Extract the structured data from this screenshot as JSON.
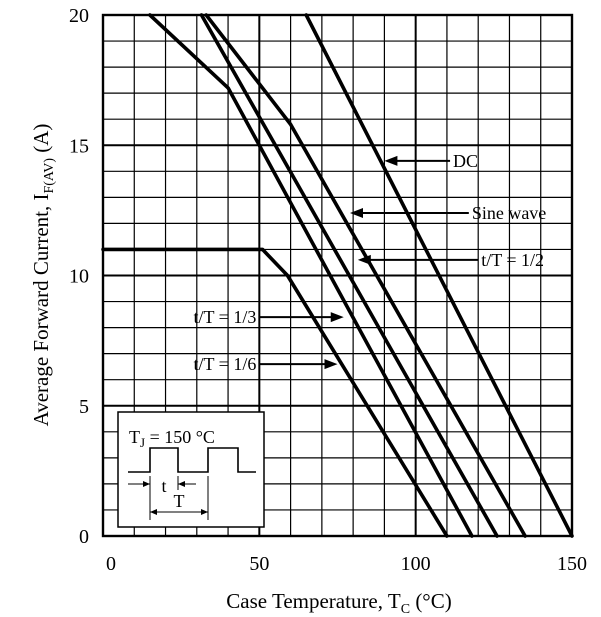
{
  "chart_data": {
    "type": "line",
    "xlabel": {
      "main": "Case Temperature, T",
      "sub": "C",
      "unit": " (°C)"
    },
    "ylabel": {
      "main": "Average Forward Current, I",
      "sub": "F(AV)",
      "unit": " (A)"
    },
    "xlim": [
      0,
      150
    ],
    "ylim": [
      0,
      20
    ],
    "x_ticks": [
      0,
      50,
      100,
      150
    ],
    "y_ticks": [
      0,
      5,
      10,
      15,
      20
    ],
    "grid": true,
    "minor_x_step": 10,
    "minor_y_step": 1,
    "series": [
      {
        "name": "DC",
        "x": [
          65,
          150
        ],
        "y": [
          20,
          0
        ]
      },
      {
        "name": "Sine wave",
        "x": [
          33,
          60,
          135
        ],
        "y": [
          20,
          15.8,
          0
        ]
      },
      {
        "name": "t/T = 1/2",
        "x": [
          31.5,
          126
        ],
        "y": [
          20,
          0
        ]
      },
      {
        "name": "t/T = 1/3",
        "x": [
          15,
          40,
          118
        ],
        "y": [
          20,
          17.2,
          0
        ]
      },
      {
        "name": "t/T = 1/6",
        "x": [
          0,
          51,
          59,
          110
        ],
        "y": [
          11,
          11,
          10,
          0
        ]
      }
    ],
    "annotations": [
      {
        "text": "DC",
        "x_tip": 90,
        "y_tip": 14.4,
        "x_tail": 111,
        "y_tail": 14.4
      },
      {
        "text": "Sine wave",
        "x_tip": 79,
        "y_tip": 12.4,
        "x_tail": 117,
        "y_tail": 12.4
      },
      {
        "text": "t/T = 1/2",
        "x_tip": 81.5,
        "y_tip": 10.6,
        "x_tail": 120,
        "y_tail": 10.6
      },
      {
        "text": "t/T = 1/3",
        "x_tip": 77,
        "y_tip": 8.4,
        "x_tail": 50,
        "y_tail": 8.4
      },
      {
        "text": "t/T = 1/6",
        "x_tip": 75,
        "y_tip": 6.6,
        "x_tail": 50,
        "y_tail": 6.6
      }
    ],
    "inset": {
      "label_main": "T",
      "label_sub": "J",
      "label_rest": " = 150 °C",
      "t_label": "t",
      "T_label": "T"
    }
  }
}
